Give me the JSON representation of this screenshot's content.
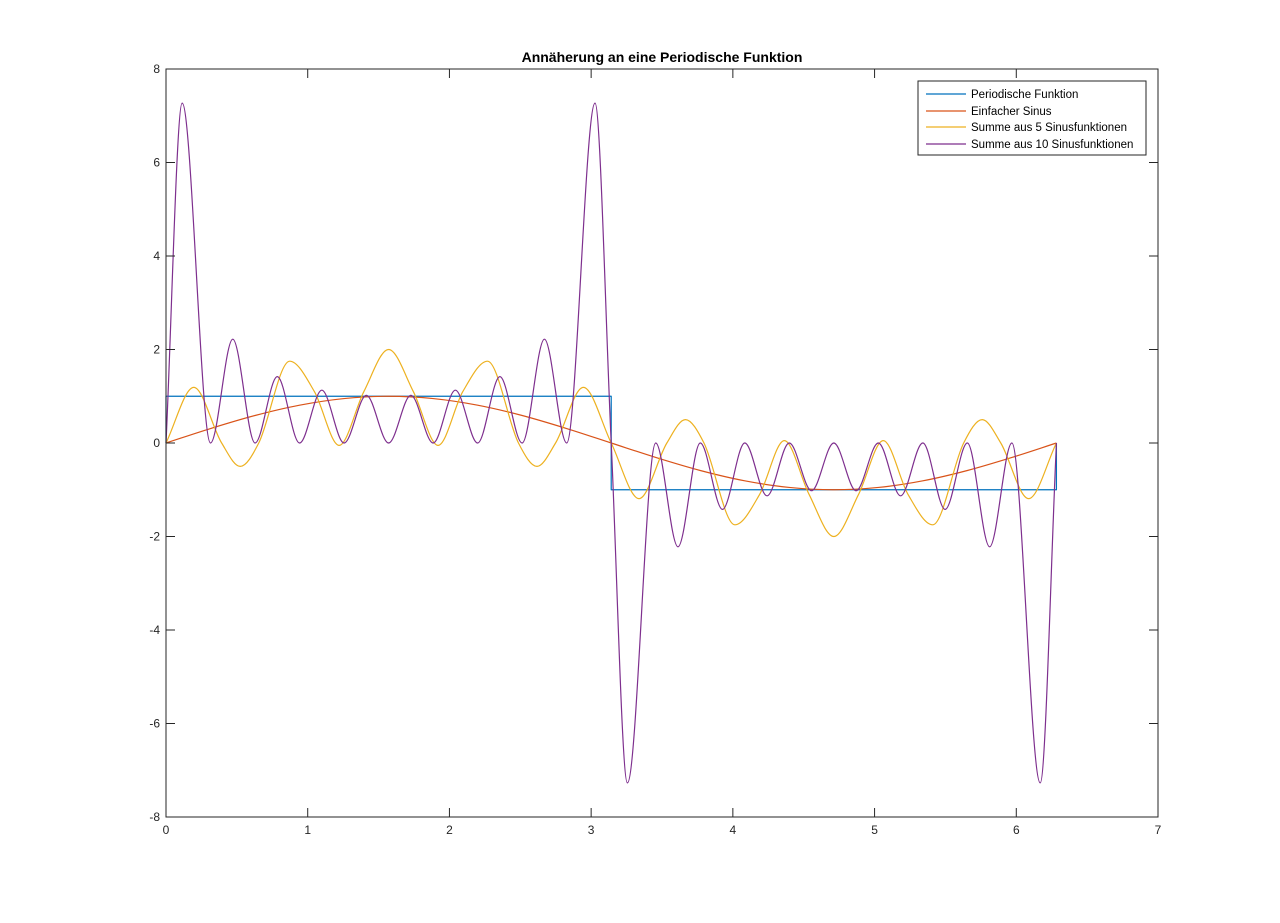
{
  "chart_data": {
    "type": "line",
    "title": "Annäherung an eine Periodische Funktion",
    "xlabel": "",
    "ylabel": "",
    "xlim": [
      0,
      7
    ],
    "ylim": [
      -8,
      8
    ],
    "xticks": [
      0,
      1,
      2,
      3,
      4,
      5,
      6,
      7
    ],
    "yticks": [
      -8,
      -6,
      -4,
      -2,
      0,
      2,
      4,
      6,
      8
    ],
    "xtick_labels": [
      "0",
      "1",
      "2",
      "3",
      "4",
      "5",
      "6",
      "7"
    ],
    "ytick_labels": [
      "-8",
      "-6",
      "-4",
      "-2",
      "0",
      "2",
      "4",
      "6",
      "8"
    ],
    "grid": false,
    "legend_position": "top-right",
    "series": [
      {
        "name": "Periodische Funktion",
        "color": "#0072BD",
        "x": [
          0,
          0,
          3.1416,
          3.1416,
          6.2832,
          6.2832
        ],
        "y": [
          0,
          1,
          1,
          -1,
          -1,
          0
        ]
      },
      {
        "name": "Einfacher Sinus",
        "color": "#D95319",
        "x": [
          0,
          0.3142,
          0.6283,
          0.9425,
          1.2566,
          1.5708,
          1.885,
          2.1991,
          2.5133,
          2.8274,
          3.1416,
          3.4558,
          3.7699,
          4.0841,
          4.3982,
          4.7124,
          5.0265,
          5.3407,
          5.6549,
          5.969,
          6.2832
        ],
        "y": [
          0,
          0.309,
          0.588,
          0.809,
          0.951,
          1,
          0.951,
          0.809,
          0.588,
          0.309,
          0,
          -0.309,
          -0.588,
          -0.809,
          -0.951,
          -1,
          -0.951,
          -0.809,
          -0.588,
          -0.309,
          0
        ]
      },
      {
        "name": "Summe aus 5 Sinusfunktionen",
        "color": "#EDB120",
        "x": [
          0,
          0.1963,
          0.3927,
          0.5236,
          0.6545,
          0.8727,
          1.0472,
          1.2217,
          1.3963,
          1.5708,
          1.7453,
          1.9199,
          2.0944,
          2.2689,
          2.4871,
          2.618,
          2.7489,
          2.9453,
          3.1416,
          3.3379,
          3.5343,
          3.6652,
          3.7961,
          4.0143,
          4.1888,
          4.3633,
          4.5379,
          4.7124,
          4.8869,
          5.0615,
          5.236,
          5.4105,
          5.6287,
          5.7596,
          5.8905,
          6.0868,
          6.2832
        ],
        "y": [
          0,
          1.19,
          0,
          -0.5,
          0,
          1.75,
          1.1,
          -0.05,
          1.1,
          2.0,
          1.1,
          -0.05,
          1.1,
          1.75,
          0,
          -0.5,
          0,
          1.19,
          0,
          -1.19,
          0,
          0.5,
          0,
          -1.75,
          -1.1,
          0.05,
          -1.1,
          -2.0,
          -1.1,
          0.05,
          -1.1,
          -1.75,
          0,
          0.5,
          0,
          -1.19,
          0
        ]
      },
      {
        "name": "Summe aus 10 Sinusfunktionen",
        "color": "#7E2F8E",
        "x": [
          0,
          0.1142,
          0.3142,
          0.4712,
          0.6283,
          0.7854,
          0.9425,
          1.0996,
          1.2566,
          1.4137,
          1.5708,
          1.7279,
          1.885,
          2.042,
          2.1991,
          2.3562,
          2.5133,
          2.6704,
          2.8274,
          3.0274,
          3.1416,
          3.2558,
          3.4558,
          3.6128,
          3.7699,
          3.927,
          4.0841,
          4.2412,
          4.3982,
          4.5553,
          4.7124,
          4.8695,
          5.0265,
          5.1836,
          5.3407,
          5.4978,
          5.6549,
          5.812,
          5.969,
          6.169,
          6.2832
        ],
        "y": [
          0,
          7.27,
          0,
          2.22,
          0,
          1.42,
          0,
          1.13,
          0,
          1.02,
          0,
          1.02,
          0,
          1.13,
          0,
          1.42,
          0,
          2.22,
          0,
          7.27,
          0,
          -7.27,
          0,
          -2.22,
          0,
          -1.42,
          0,
          -1.13,
          0,
          -1.02,
          0,
          -1.02,
          0,
          -1.13,
          0,
          -1.42,
          0,
          -2.22,
          0,
          -7.27,
          0
        ]
      }
    ]
  }
}
